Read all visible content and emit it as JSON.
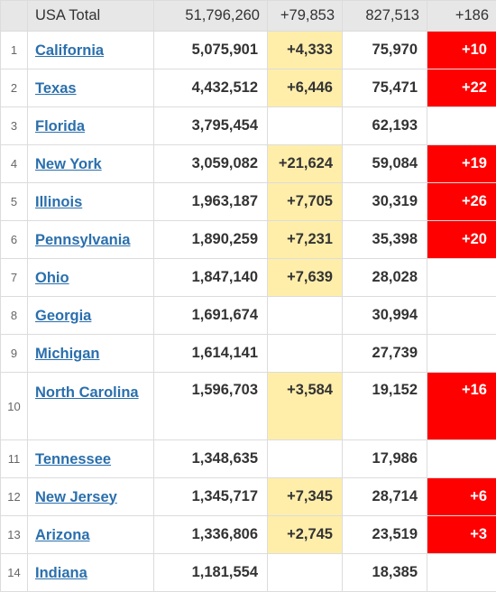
{
  "totals": {
    "label": "USA Total",
    "total_cases": "51,796,260",
    "new_cases": "+79,853",
    "total_deaths": "827,513",
    "new_deaths": "+186"
  },
  "rows": [
    {
      "rank": "1",
      "state": "California",
      "total_cases": "5,075,901",
      "new_cases": "+4,333",
      "total_deaths": "75,970",
      "new_deaths": "+10"
    },
    {
      "rank": "2",
      "state": "Texas",
      "total_cases": "4,432,512",
      "new_cases": "+6,446",
      "total_deaths": "75,471",
      "new_deaths": "+22"
    },
    {
      "rank": "3",
      "state": "Florida",
      "total_cases": "3,795,454",
      "new_cases": "",
      "total_deaths": "62,193",
      "new_deaths": ""
    },
    {
      "rank": "4",
      "state": "New York",
      "total_cases": "3,059,082",
      "new_cases": "+21,624",
      "total_deaths": "59,084",
      "new_deaths": "+19"
    },
    {
      "rank": "5",
      "state": "Illinois",
      "total_cases": "1,963,187",
      "new_cases": "+7,705",
      "total_deaths": "30,319",
      "new_deaths": "+26"
    },
    {
      "rank": "6",
      "state": "Pennsylvania",
      "total_cases": "1,890,259",
      "new_cases": "+7,231",
      "total_deaths": "35,398",
      "new_deaths": "+20"
    },
    {
      "rank": "7",
      "state": "Ohio",
      "total_cases": "1,847,140",
      "new_cases": "+7,639",
      "total_deaths": "28,028",
      "new_deaths": ""
    },
    {
      "rank": "8",
      "state": "Georgia",
      "total_cases": "1,691,674",
      "new_cases": "",
      "total_deaths": "30,994",
      "new_deaths": ""
    },
    {
      "rank": "9",
      "state": "Michigan",
      "total_cases": "1,614,141",
      "new_cases": "",
      "total_deaths": "27,739",
      "new_deaths": ""
    },
    {
      "rank": "10",
      "state": "North Carolina",
      "total_cases": "1,596,703",
      "new_cases": "+3,584",
      "total_deaths": "19,152",
      "new_deaths": "+16"
    },
    {
      "rank": "11",
      "state": "Tennessee",
      "total_cases": "1,348,635",
      "new_cases": "",
      "total_deaths": "17,986",
      "new_deaths": ""
    },
    {
      "rank": "12",
      "state": "New Jersey",
      "total_cases": "1,345,717",
      "new_cases": "+7,345",
      "total_deaths": "28,714",
      "new_deaths": "+6"
    },
    {
      "rank": "13",
      "state": "Arizona",
      "total_cases": "1,336,806",
      "new_cases": "+2,745",
      "total_deaths": "23,519",
      "new_deaths": "+3"
    },
    {
      "rank": "14",
      "state": "Indiana",
      "total_cases": "1,181,554",
      "new_cases": "",
      "total_deaths": "18,385",
      "new_deaths": ""
    }
  ],
  "colors": {
    "new_cases_highlight": "#ffeeaa",
    "new_deaths_highlight": "#ff0000",
    "link": "#2a6fad",
    "total_row": "#e7e7e7"
  }
}
